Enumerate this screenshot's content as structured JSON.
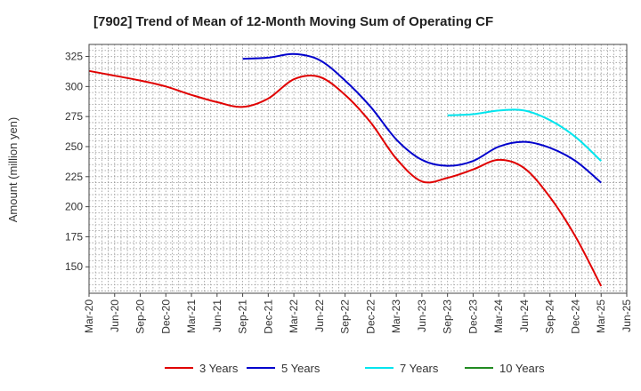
{
  "chart_data": {
    "type": "line",
    "title": "[7902]  Trend of Mean of 12-Month Moving Sum of Operating CF",
    "ylabel": "Amount (million yen)",
    "xlabel": "",
    "ylim": [
      128,
      335
    ],
    "yticks": [
      150,
      175,
      200,
      225,
      250,
      275,
      300,
      325
    ],
    "xticks": [
      "Mar-20",
      "Jun-20",
      "Sep-20",
      "Dec-20",
      "Mar-21",
      "Jun-21",
      "Sep-21",
      "Dec-21",
      "Mar-22",
      "Jun-22",
      "Sep-22",
      "Dec-22",
      "Mar-23",
      "Jun-23",
      "Sep-23",
      "Dec-23",
      "Mar-24",
      "Jun-24",
      "Sep-24",
      "Dec-24",
      "Mar-25",
      "Jun-25"
    ],
    "grid": true,
    "legend_position": "bottom",
    "series": [
      {
        "name": "3 Years",
        "color": "#e00000",
        "x": [
          "Mar-20",
          "Jun-20",
          "Sep-20",
          "Dec-20",
          "Mar-21",
          "Jun-21",
          "Sep-21",
          "Dec-21",
          "Mar-22",
          "Jun-22",
          "Sep-22",
          "Dec-22",
          "Mar-23",
          "Jun-23",
          "Sep-23",
          "Dec-23",
          "Mar-24",
          "Jun-24",
          "Sep-24",
          "Dec-24",
          "Mar-25"
        ],
        "values": [
          313,
          309,
          305,
          300,
          293,
          287,
          283,
          290,
          306,
          308,
          293,
          270,
          240,
          221,
          224,
          231,
          239,
          232,
          208,
          175,
          134
        ]
      },
      {
        "name": "5 Years",
        "color": "#0000cc",
        "x": [
          "Sep-21",
          "Dec-21",
          "Mar-22",
          "Jun-22",
          "Sep-22",
          "Dec-22",
          "Mar-23",
          "Jun-23",
          "Sep-23",
          "Dec-23",
          "Mar-24",
          "Jun-24",
          "Sep-24",
          "Dec-24",
          "Mar-25"
        ],
        "values": [
          323,
          324,
          327,
          322,
          305,
          283,
          256,
          239,
          234,
          238,
          250,
          254,
          249,
          238,
          220
        ]
      },
      {
        "name": "7 Years",
        "color": "#00e5ee",
        "x": [
          "Sep-23",
          "Dec-23",
          "Mar-24",
          "Jun-24",
          "Sep-24",
          "Dec-24",
          "Mar-25"
        ],
        "values": [
          276,
          277,
          280,
          280,
          272,
          258,
          238
        ]
      },
      {
        "name": "10 Years",
        "color": "#228b22",
        "x": [],
        "values": []
      }
    ]
  }
}
